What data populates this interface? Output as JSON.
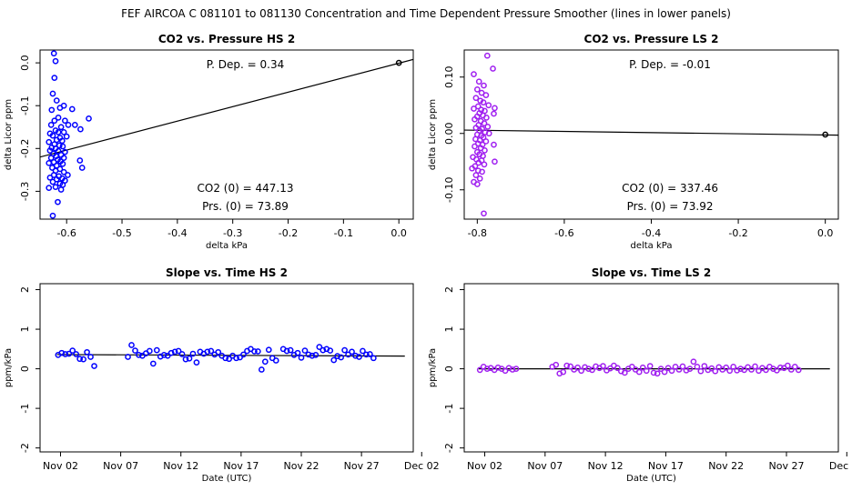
{
  "figure": {
    "title": "FEF   AIRCOA C   081101 to 081130   Concentration and Time Dependent Pressure Smoother (lines in lower panels)"
  },
  "colors": {
    "hs": "#0000ff",
    "ls": "#a020f0",
    "axis": "#000000"
  },
  "chart_data": [
    {
      "id": "hs_scatter",
      "type": "scatter",
      "title": "CO2 vs. Pressure HS 2",
      "xlabel": "delta kPa",
      "ylabel": "delta Licor ppm",
      "xlim": [
        -0.648,
        0.026
      ],
      "ylim": [
        -0.365,
        0.03
      ],
      "xticks": [
        -0.6,
        -0.5,
        -0.4,
        -0.3,
        -0.2,
        -0.1,
        0.0
      ],
      "xtick_labels": [
        "-0.6",
        "-0.5",
        "-0.4",
        "-0.3",
        "-0.2",
        "-0.1",
        "0.0"
      ],
      "yticks": [
        0.0,
        -0.1,
        -0.2,
        -0.3
      ],
      "ytick_labels": [
        "0.0",
        "-0.1",
        "-0.2",
        "-0.3"
      ],
      "fit_line": {
        "x": [
          -0.648,
          0.026
        ],
        "y": [
          -0.22,
          0.008
        ]
      },
      "reference_point": {
        "x": 0.0,
        "y": 0.0
      },
      "annotations": {
        "p_dep": "P. Dep. =  0.34",
        "co2_0": "CO2 (0) =  447.13",
        "prs_0": "Prs. (0) =  73.89"
      },
      "points": [
        [
          -0.623,
          0.022
        ],
        [
          -0.62,
          0.004
        ],
        [
          -0.622,
          -0.035
        ],
        [
          -0.625,
          -0.072
        ],
        [
          -0.618,
          -0.088
        ],
        [
          -0.627,
          -0.11
        ],
        [
          -0.612,
          -0.105
        ],
        [
          -0.605,
          -0.1
        ],
        [
          -0.59,
          -0.108
        ],
        [
          -0.56,
          -0.13
        ],
        [
          -0.615,
          -0.128
        ],
        [
          -0.622,
          -0.135
        ],
        [
          -0.603,
          -0.135
        ],
        [
          -0.597,
          -0.145
        ],
        [
          -0.585,
          -0.145
        ],
        [
          -0.575,
          -0.155
        ],
        [
          -0.628,
          -0.145
        ],
        [
          -0.61,
          -0.15
        ],
        [
          -0.62,
          -0.158
        ],
        [
          -0.615,
          -0.162
        ],
        [
          -0.63,
          -0.165
        ],
        [
          -0.605,
          -0.162
        ],
        [
          -0.6,
          -0.172
        ],
        [
          -0.625,
          -0.17
        ],
        [
          -0.612,
          -0.175
        ],
        [
          -0.618,
          -0.18
        ],
        [
          -0.608,
          -0.182
        ],
        [
          -0.632,
          -0.185
        ],
        [
          -0.622,
          -0.19
        ],
        [
          -0.613,
          -0.193
        ],
        [
          -0.627,
          -0.198
        ],
        [
          -0.607,
          -0.195
        ],
        [
          -0.62,
          -0.2
        ],
        [
          -0.63,
          -0.205
        ],
        [
          -0.615,
          -0.206
        ],
        [
          -0.603,
          -0.208
        ],
        [
          -0.624,
          -0.212
        ],
        [
          -0.61,
          -0.215
        ],
        [
          -0.619,
          -0.218
        ],
        [
          -0.628,
          -0.222
        ],
        [
          -0.605,
          -0.222
        ],
        [
          -0.616,
          -0.226
        ],
        [
          -0.611,
          -0.23
        ],
        [
          -0.623,
          -0.232
        ],
        [
          -0.632,
          -0.234
        ],
        [
          -0.607,
          -0.236
        ],
        [
          -0.618,
          -0.24
        ],
        [
          -0.576,
          -0.228
        ],
        [
          -0.572,
          -0.245
        ],
        [
          -0.626,
          -0.245
        ],
        [
          -0.612,
          -0.248
        ],
        [
          -0.62,
          -0.252
        ],
        [
          -0.605,
          -0.255
        ],
        [
          -0.598,
          -0.262
        ],
        [
          -0.623,
          -0.262
        ],
        [
          -0.614,
          -0.265
        ],
        [
          -0.63,
          -0.268
        ],
        [
          -0.608,
          -0.27
        ],
        [
          -0.618,
          -0.272
        ],
        [
          -0.603,
          -0.275
        ],
        [
          -0.625,
          -0.278
        ],
        [
          -0.612,
          -0.282
        ],
        [
          -0.607,
          -0.285
        ],
        [
          -0.62,
          -0.29
        ],
        [
          -0.632,
          -0.292
        ],
        [
          -0.61,
          -0.296
        ],
        [
          -0.616,
          -0.325
        ],
        [
          -0.625,
          -0.357
        ]
      ]
    },
    {
      "id": "ls_scatter",
      "type": "scatter",
      "title": "CO2 vs. Pressure LS 2",
      "xlabel": "delta kPa",
      "ylabel": "delta Licor ppm",
      "xlim": [
        -0.83,
        0.03
      ],
      "ylim": [
        -0.152,
        0.148
      ],
      "xticks": [
        -0.8,
        -0.6,
        -0.4,
        -0.2,
        0.0
      ],
      "xtick_labels": [
        "-0.8",
        "-0.6",
        "-0.4",
        "-0.2",
        "0.0"
      ],
      "yticks": [
        0.1,
        0.0,
        -0.1
      ],
      "ytick_labels": [
        "0.10",
        "0.00",
        "-0.10"
      ],
      "fit_line": {
        "x": [
          -0.83,
          0.03
        ],
        "y": [
          0.006,
          -0.003
        ]
      },
      "reference_point": {
        "x": 0.0,
        "y": -0.002
      },
      "annotations": {
        "p_dep": "P. Dep. =  -0.01",
        "co2_0": "CO2 (0) =  337.46",
        "prs_0": "Prs. (0) =  73.92"
      },
      "points": [
        [
          -0.777,
          0.138
        ],
        [
          -0.764,
          0.115
        ],
        [
          -0.808,
          0.105
        ],
        [
          -0.796,
          0.092
        ],
        [
          -0.785,
          0.085
        ],
        [
          -0.8,
          0.078
        ],
        [
          -0.79,
          0.072
        ],
        [
          -0.78,
          0.068
        ],
        [
          -0.803,
          0.063
        ],
        [
          -0.793,
          0.058
        ],
        [
          -0.786,
          0.055
        ],
        [
          -0.774,
          0.05
        ],
        [
          -0.798,
          0.048
        ],
        [
          -0.808,
          0.044
        ],
        [
          -0.791,
          0.042
        ],
        [
          -0.783,
          0.04
        ],
        [
          -0.76,
          0.045
        ],
        [
          -0.762,
          0.035
        ],
        [
          -0.795,
          0.036
        ],
        [
          -0.787,
          0.032
        ],
        [
          -0.8,
          0.03
        ],
        [
          -0.779,
          0.028
        ],
        [
          -0.806,
          0.025
        ],
        [
          -0.792,
          0.022
        ],
        [
          -0.784,
          0.018
        ],
        [
          -0.797,
          0.015
        ],
        [
          -0.776,
          0.012
        ],
        [
          -0.803,
          0.01
        ],
        [
          -0.789,
          0.008
        ],
        [
          -0.795,
          0.005
        ],
        [
          -0.782,
          0.002
        ],
        [
          -0.773,
          0.0
        ],
        [
          -0.8,
          -0.002
        ],
        [
          -0.791,
          -0.004
        ],
        [
          -0.786,
          -0.007
        ],
        [
          -0.804,
          -0.01
        ],
        [
          -0.794,
          -0.012
        ],
        [
          -0.78,
          -0.014
        ],
        [
          -0.798,
          -0.018
        ],
        [
          -0.788,
          -0.02
        ],
        [
          -0.806,
          -0.023
        ],
        [
          -0.762,
          -0.02
        ],
        [
          -0.792,
          -0.026
        ],
        [
          -0.783,
          -0.03
        ],
        [
          -0.8,
          -0.033
        ],
        [
          -0.795,
          -0.037
        ],
        [
          -0.787,
          -0.04
        ],
        [
          -0.81,
          -0.042
        ],
        [
          -0.802,
          -0.046
        ],
        [
          -0.79,
          -0.048
        ],
        [
          -0.76,
          -0.05
        ],
        [
          -0.797,
          -0.052
        ],
        [
          -0.784,
          -0.055
        ],
        [
          -0.805,
          -0.058
        ],
        [
          -0.812,
          -0.062
        ],
        [
          -0.798,
          -0.066
        ],
        [
          -0.789,
          -0.068
        ],
        [
          -0.803,
          -0.074
        ],
        [
          -0.794,
          -0.08
        ],
        [
          -0.808,
          -0.086
        ],
        [
          -0.8,
          -0.09
        ],
        [
          -0.785,
          -0.142
        ]
      ]
    },
    {
      "id": "hs_slope",
      "type": "scatter",
      "title": "Slope vs. Time HS 2",
      "xlabel": "Date (UTC)",
      "ylabel": "ppm/kPa",
      "xlim": [
        -0.7,
        30.3
      ],
      "ylim": [
        -2.1,
        2.15
      ],
      "xticks": [
        1,
        6,
        11,
        16,
        21,
        26,
        31
      ],
      "xtick_labels": [
        "Nov 02",
        "Nov 07",
        "Nov 12",
        "Nov 17",
        "Nov 22",
        "Nov 27",
        "Dec 02"
      ],
      "yticks": [
        -2,
        -1,
        0,
        1,
        2
      ],
      "ytick_labels": [
        "-2",
        "-1",
        "0",
        "1",
        "2"
      ],
      "smoother": {
        "x": [
          0.7,
          29.6
        ],
        "y": [
          0.36,
          0.32
        ]
      },
      "points": [
        [
          0.8,
          0.35
        ],
        [
          1.1,
          0.4
        ],
        [
          1.4,
          0.37
        ],
        [
          1.7,
          0.38
        ],
        [
          2.0,
          0.46
        ],
        [
          2.3,
          0.37
        ],
        [
          2.6,
          0.25
        ],
        [
          2.9,
          0.24
        ],
        [
          3.2,
          0.42
        ],
        [
          3.5,
          0.3
        ],
        [
          3.8,
          0.07
        ],
        [
          6.6,
          0.3
        ],
        [
          6.9,
          0.6
        ],
        [
          7.2,
          0.46
        ],
        [
          7.5,
          0.35
        ],
        [
          7.8,
          0.33
        ],
        [
          8.1,
          0.39
        ],
        [
          8.4,
          0.45
        ],
        [
          8.7,
          0.13
        ],
        [
          9.0,
          0.47
        ],
        [
          9.3,
          0.31
        ],
        [
          9.6,
          0.35
        ],
        [
          9.9,
          0.33
        ],
        [
          10.2,
          0.4
        ],
        [
          10.5,
          0.43
        ],
        [
          10.8,
          0.45
        ],
        [
          11.1,
          0.37
        ],
        [
          11.4,
          0.24
        ],
        [
          11.7,
          0.26
        ],
        [
          12.0,
          0.38
        ],
        [
          12.3,
          0.16
        ],
        [
          12.6,
          0.43
        ],
        [
          12.9,
          0.38
        ],
        [
          13.2,
          0.43
        ],
        [
          13.5,
          0.45
        ],
        [
          13.8,
          0.36
        ],
        [
          14.1,
          0.42
        ],
        [
          14.4,
          0.33
        ],
        [
          14.7,
          0.27
        ],
        [
          15.0,
          0.25
        ],
        [
          15.3,
          0.33
        ],
        [
          15.6,
          0.27
        ],
        [
          15.9,
          0.29
        ],
        [
          16.2,
          0.36
        ],
        [
          16.5,
          0.45
        ],
        [
          16.8,
          0.5
        ],
        [
          17.1,
          0.44
        ],
        [
          17.4,
          0.44
        ],
        [
          17.7,
          -0.02
        ],
        [
          18.0,
          0.18
        ],
        [
          18.3,
          0.48
        ],
        [
          18.6,
          0.27
        ],
        [
          18.9,
          0.21
        ],
        [
          19.5,
          0.5
        ],
        [
          19.8,
          0.45
        ],
        [
          20.1,
          0.47
        ],
        [
          20.4,
          0.35
        ],
        [
          20.7,
          0.4
        ],
        [
          21.0,
          0.28
        ],
        [
          21.3,
          0.46
        ],
        [
          21.6,
          0.36
        ],
        [
          21.9,
          0.33
        ],
        [
          22.2,
          0.35
        ],
        [
          22.5,
          0.55
        ],
        [
          22.8,
          0.47
        ],
        [
          23.1,
          0.5
        ],
        [
          23.4,
          0.46
        ],
        [
          23.7,
          0.22
        ],
        [
          24.0,
          0.32
        ],
        [
          24.3,
          0.29
        ],
        [
          24.6,
          0.47
        ],
        [
          24.9,
          0.36
        ],
        [
          25.2,
          0.43
        ],
        [
          25.5,
          0.33
        ],
        [
          25.8,
          0.3
        ],
        [
          26.1,
          0.45
        ],
        [
          26.4,
          0.36
        ],
        [
          26.7,
          0.37
        ],
        [
          27.0,
          0.27
        ]
      ]
    },
    {
      "id": "ls_slope",
      "type": "scatter",
      "title": "Slope vs. Time LS 2",
      "xlabel": "Date (UTC)",
      "ylabel": "ppm/kPa",
      "xlim": [
        -0.7,
        30.3
      ],
      "ylim": [
        -2.1,
        2.15
      ],
      "xticks": [
        1,
        6,
        11,
        16,
        21,
        26,
        31
      ],
      "xtick_labels": [
        "Nov 02",
        "Nov 07",
        "Nov 12",
        "Nov 17",
        "Nov 22",
        "Nov 27",
        "Dec 02"
      ],
      "yticks": [
        -2,
        -1,
        0,
        1,
        2
      ],
      "ytick_labels": [
        "-2",
        "-1",
        "0",
        "1",
        "2"
      ],
      "smoother": {
        "x": [
          0.5,
          29.6
        ],
        "y": [
          0.0,
          0.0
        ]
      },
      "points": [
        [
          0.6,
          -0.03
        ],
        [
          0.9,
          0.05
        ],
        [
          1.2,
          0.0
        ],
        [
          1.5,
          0.02
        ],
        [
          1.8,
          -0.03
        ],
        [
          2.1,
          0.03
        ],
        [
          2.4,
          0.0
        ],
        [
          2.7,
          -0.05
        ],
        [
          3.0,
          0.02
        ],
        [
          3.3,
          -0.02
        ],
        [
          3.6,
          0.0
        ],
        [
          6.6,
          0.05
        ],
        [
          6.9,
          0.1
        ],
        [
          7.2,
          -0.12
        ],
        [
          7.5,
          -0.08
        ],
        [
          7.8,
          0.08
        ],
        [
          8.1,
          0.06
        ],
        [
          8.4,
          -0.02
        ],
        [
          8.7,
          0.03
        ],
        [
          9.0,
          -0.05
        ],
        [
          9.3,
          0.04
        ],
        [
          9.6,
          0.0
        ],
        [
          9.9,
          -0.03
        ],
        [
          10.2,
          0.06
        ],
        [
          10.5,
          0.02
        ],
        [
          10.8,
          0.07
        ],
        [
          11.1,
          -0.04
        ],
        [
          11.4,
          0.01
        ],
        [
          11.7,
          0.08
        ],
        [
          12.0,
          0.02
        ],
        [
          12.3,
          -0.06
        ],
        [
          12.6,
          -0.1
        ],
        [
          12.9,
          0.0
        ],
        [
          13.2,
          0.05
        ],
        [
          13.5,
          -0.02
        ],
        [
          13.8,
          -0.08
        ],
        [
          14.1,
          0.03
        ],
        [
          14.4,
          -0.05
        ],
        [
          14.7,
          0.07
        ],
        [
          15.0,
          -0.1
        ],
        [
          15.3,
          -0.12
        ],
        [
          15.6,
          0.0
        ],
        [
          15.9,
          -0.08
        ],
        [
          16.2,
          0.02
        ],
        [
          16.5,
          -0.05
        ],
        [
          16.8,
          0.05
        ],
        [
          17.1,
          -0.02
        ],
        [
          17.4,
          0.06
        ],
        [
          17.7,
          -0.04
        ],
        [
          18.0,
          0.0
        ],
        [
          18.3,
          0.18
        ],
        [
          18.6,
          0.05
        ],
        [
          18.9,
          -0.06
        ],
        [
          19.2,
          0.07
        ],
        [
          19.5,
          -0.03
        ],
        [
          19.8,
          0.01
        ],
        [
          20.1,
          -0.06
        ],
        [
          20.4,
          0.04
        ],
        [
          20.7,
          -0.02
        ],
        [
          21.0,
          0.03
        ],
        [
          21.3,
          -0.05
        ],
        [
          21.6,
          0.05
        ],
        [
          21.9,
          -0.04
        ],
        [
          22.2,
          0.0
        ],
        [
          22.5,
          -0.03
        ],
        [
          22.8,
          0.04
        ],
        [
          23.1,
          -0.02
        ],
        [
          23.4,
          0.06
        ],
        [
          23.7,
          -0.05
        ],
        [
          24.0,
          0.02
        ],
        [
          24.3,
          -0.03
        ],
        [
          24.6,
          0.05
        ],
        [
          24.9,
          0.0
        ],
        [
          25.2,
          -0.04
        ],
        [
          25.5,
          0.03
        ],
        [
          25.8,
          0.02
        ],
        [
          26.1,
          0.08
        ],
        [
          26.4,
          -0.02
        ],
        [
          26.7,
          0.05
        ],
        [
          27.0,
          -0.03
        ]
      ]
    }
  ]
}
